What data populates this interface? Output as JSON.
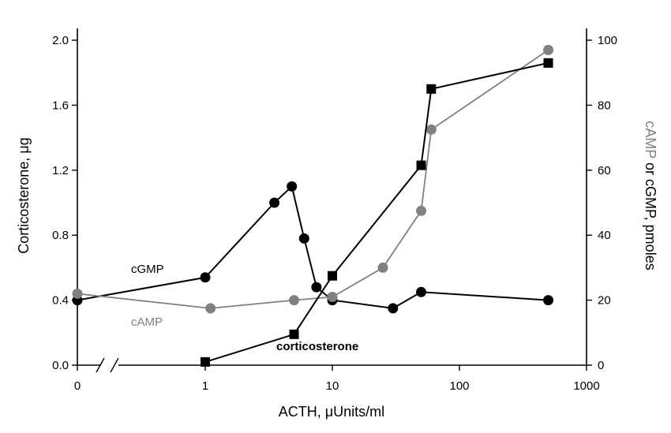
{
  "chart_data": {
    "type": "line",
    "title": "",
    "xlabel": "ACTH, μUnits/ml",
    "ylabel_left": "Corticosterone, μg",
    "ylabel_right_parts": [
      "cAMP",
      " or cGMP, pmoles"
    ],
    "x_scale": "log with axis break before 1",
    "x_ticks": [
      "0",
      "1",
      "10",
      "100",
      "1000"
    ],
    "y_left_lim": [
      0,
      2.0
    ],
    "y_left_ticks": [
      "0.0",
      "0.4",
      "0.8",
      "1.2",
      "1.6",
      "2.0"
    ],
    "y_right_lim": [
      0,
      100
    ],
    "y_right_ticks": [
      "0",
      "20",
      "40",
      "60",
      "80",
      "100"
    ],
    "grid": false,
    "legend": "none",
    "series": [
      {
        "name": "cGMP",
        "axis": "right",
        "color": "#000000",
        "marker": "circle",
        "points": [
          {
            "x": 0,
            "y": 20
          },
          {
            "x": 1,
            "y": 27
          },
          {
            "x": 3.5,
            "y": 50
          },
          {
            "x": 4.8,
            "y": 55
          },
          {
            "x": 6,
            "y": 39
          },
          {
            "x": 7.5,
            "y": 24
          },
          {
            "x": 10,
            "y": 20
          },
          {
            "x": 30,
            "y": 17.5
          },
          {
            "x": 50,
            "y": 22.5
          },
          {
            "x": 500,
            "y": 20
          }
        ]
      },
      {
        "name": "cAMP",
        "axis": "right",
        "color": "#808080",
        "marker": "circle",
        "points": [
          {
            "x": 0,
            "y": 22
          },
          {
            "x": 1.1,
            "y": 17.5
          },
          {
            "x": 5,
            "y": 20
          },
          {
            "x": 10,
            "y": 21
          },
          {
            "x": 25,
            "y": 30
          },
          {
            "x": 50,
            "y": 47.5
          },
          {
            "x": 60,
            "y": 72.5
          },
          {
            "x": 500,
            "y": 97
          }
        ]
      },
      {
        "name": "corticosterone",
        "axis": "left",
        "color": "#000000",
        "marker": "square",
        "points": [
          {
            "x": 1,
            "y": 0.02
          },
          {
            "x": 5,
            "y": 0.19
          },
          {
            "x": 10,
            "y": 0.55
          },
          {
            "x": 50,
            "y": 1.23
          },
          {
            "x": 60,
            "y": 1.7
          },
          {
            "x": 500,
            "y": 1.86
          }
        ]
      }
    ]
  }
}
